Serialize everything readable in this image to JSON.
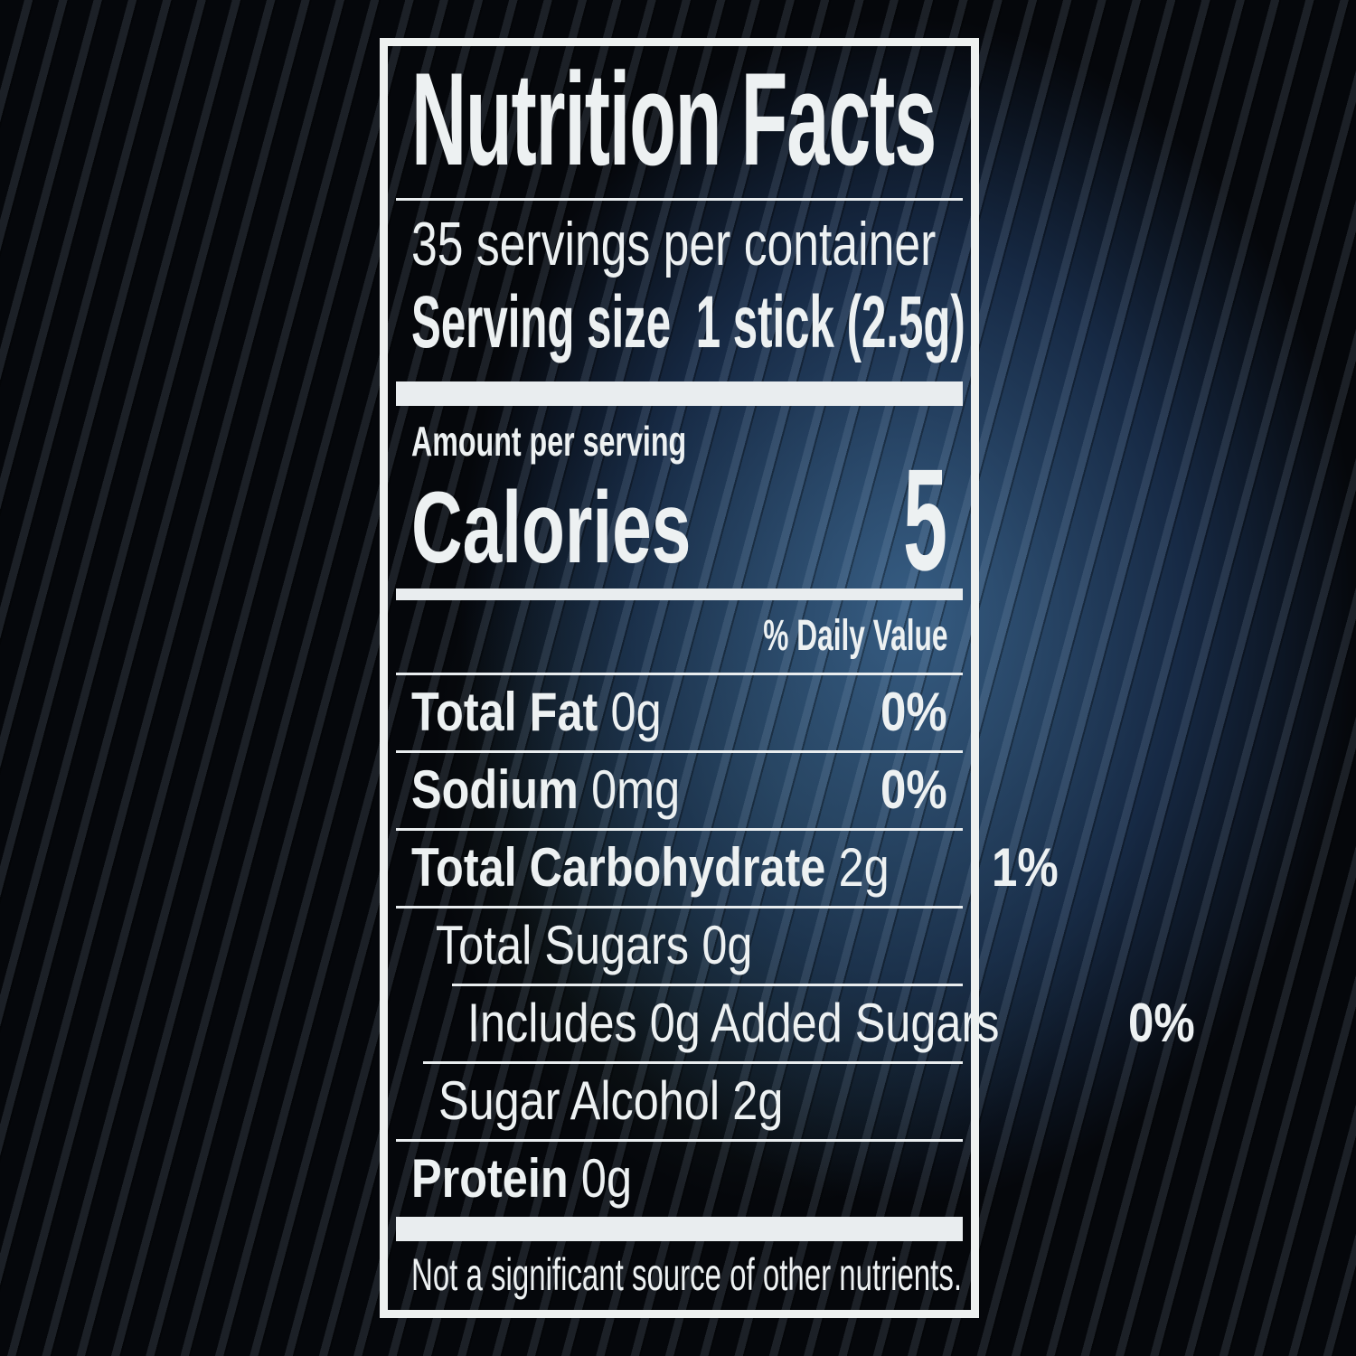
{
  "colors": {
    "background": "#05070b",
    "glow_blue": "#2f5174",
    "glow_teal": "#3c6472",
    "panel_border": "#eef1f0",
    "text": "#edf1f2",
    "bar": "#e9edef"
  },
  "label": {
    "title": "Nutrition Facts",
    "servings_per_container": "35 servings per container",
    "serving_size_label": "Serving size",
    "serving_size_value": "1 stick (2.5g)",
    "amount_per_serving": "Amount per serving",
    "calories_label": "Calories",
    "calories_value": "5",
    "daily_value_header": "% Daily Value",
    "rows": [
      {
        "name": "Total Fat",
        "amount": "0g",
        "daily_value": "0%"
      },
      {
        "name": "Sodium",
        "amount": "0mg",
        "daily_value": "0%"
      },
      {
        "name": "Total Carbohydrate",
        "amount": "2g",
        "daily_value": "1%"
      },
      {
        "name": "Total Sugars",
        "amount": "0g",
        "daily_value": ""
      },
      {
        "name": "Includes 0g Added Sugars",
        "amount": "",
        "daily_value": "0%"
      },
      {
        "name": "Sugar Alcohol",
        "amount": "2g",
        "daily_value": ""
      },
      {
        "name": "Protein",
        "amount": "0g",
        "daily_value": ""
      }
    ],
    "footnote": "Not a significant source of other nutrients."
  }
}
